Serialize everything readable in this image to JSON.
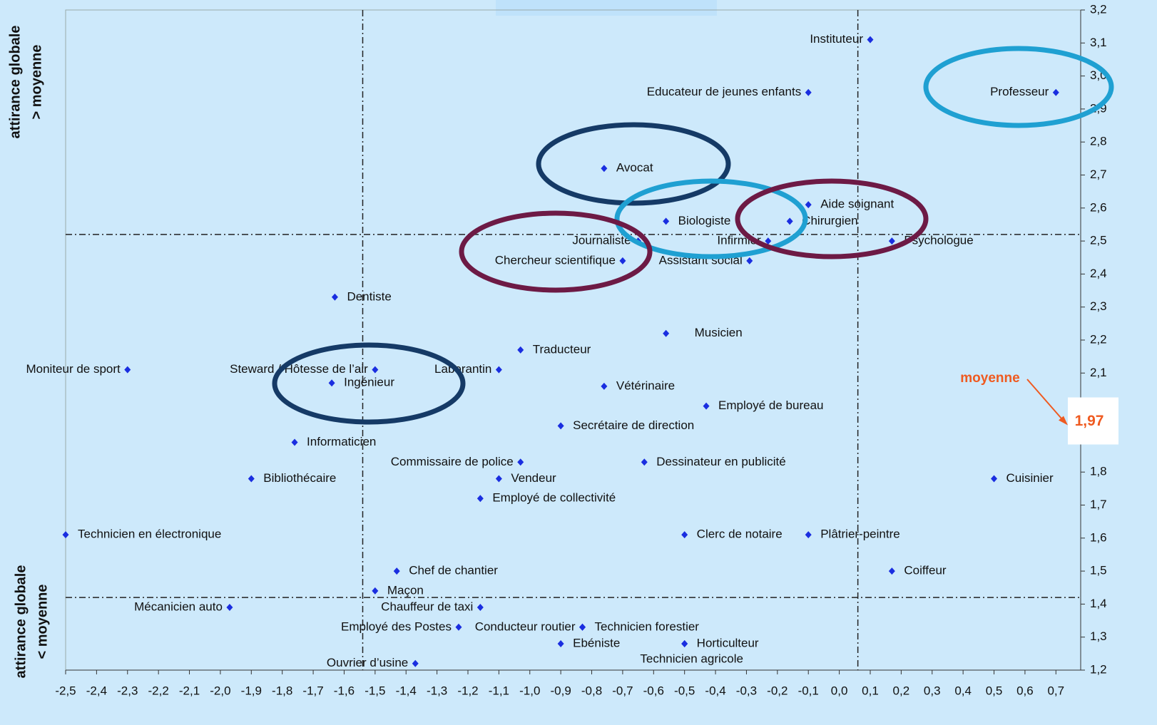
{
  "chart_data": {
    "type": "scatter",
    "y_label_top": [
      "attirance globale",
      "> moyenne"
    ],
    "y_label_bottom": [
      "attirance globale",
      "< moyenne"
    ],
    "mean_title": "moyenne",
    "mean": {
      "value": 1.97,
      "label": "1,97"
    },
    "reference_lines": {
      "x": [
        -1.54,
        0.06
      ],
      "y": [
        2.52,
        1.42
      ]
    },
    "color": "#1a2ee0",
    "xlim": [
      -2.5,
      0.78
    ],
    "ylim": [
      1.2,
      3.2
    ],
    "xticks": [
      {
        "value": -2.5,
        "label": "-2,5"
      },
      {
        "value": -2.4,
        "label": "-2,4"
      },
      {
        "value": -2.3,
        "label": "-2,3"
      },
      {
        "value": -2.2,
        "label": "-2,2"
      },
      {
        "value": -2.1,
        "label": "-2,1"
      },
      {
        "value": -2.0,
        "label": "-2,0"
      },
      {
        "value": -1.9,
        "label": "-1,9"
      },
      {
        "value": -1.8,
        "label": "-1,8"
      },
      {
        "value": -1.7,
        "label": "-1,7"
      },
      {
        "value": -1.6,
        "label": "-1,6"
      },
      {
        "value": -1.5,
        "label": "-1,5"
      },
      {
        "value": -1.4,
        "label": "-1,4"
      },
      {
        "value": -1.3,
        "label": "-1,3"
      },
      {
        "value": -1.2,
        "label": "-1,2"
      },
      {
        "value": -1.1,
        "label": "-1,1"
      },
      {
        "value": -1.0,
        "label": "-1,0"
      },
      {
        "value": -0.9,
        "label": "-0,9"
      },
      {
        "value": -0.8,
        "label": "-0,8"
      },
      {
        "value": -0.7,
        "label": "-0,7"
      },
      {
        "value": -0.6,
        "label": "-0,6"
      },
      {
        "value": -0.5,
        "label": "-0,5"
      },
      {
        "value": -0.4,
        "label": "-0,4"
      },
      {
        "value": -0.3,
        "label": "-0,3"
      },
      {
        "value": -0.2,
        "label": "-0,2"
      },
      {
        "value": -0.1,
        "label": "-0,1"
      },
      {
        "value": 0.0,
        "label": "0,0"
      },
      {
        "value": 0.1,
        "label": "0,1"
      },
      {
        "value": 0.2,
        "label": "0,2"
      },
      {
        "value": 0.3,
        "label": "0,3"
      },
      {
        "value": 0.4,
        "label": "0,4"
      },
      {
        "value": 0.5,
        "label": "0,5"
      },
      {
        "value": 0.6,
        "label": "0,6"
      },
      {
        "value": 0.7,
        "label": "0,7"
      }
    ],
    "yticks": [
      {
        "value": 1.2,
        "label": "1,2"
      },
      {
        "value": 1.3,
        "label": "1,3"
      },
      {
        "value": 1.4,
        "label": "1,4"
      },
      {
        "value": 1.5,
        "label": "1,5"
      },
      {
        "value": 1.6,
        "label": "1,6"
      },
      {
        "value": 1.7,
        "label": "1,7"
      },
      {
        "value": 1.8,
        "label": "1,8"
      },
      {
        "value": 1.9,
        "label": "1,9"
      },
      {
        "value": 2.0,
        "label": "2,0"
      },
      {
        "value": 2.1,
        "label": "2,1"
      },
      {
        "value": 2.2,
        "label": "2,2"
      },
      {
        "value": 2.3,
        "label": "2,3"
      },
      {
        "value": 2.4,
        "label": "2,4"
      },
      {
        "value": 2.5,
        "label": "2,5"
      },
      {
        "value": 2.6,
        "label": "2,6"
      },
      {
        "value": 2.7,
        "label": "2,7"
      },
      {
        "value": 2.8,
        "label": "2,8"
      },
      {
        "value": 2.9,
        "label": "2,9"
      },
      {
        "value": 3.0,
        "label": "3,0"
      },
      {
        "value": 3.1,
        "label": "3,1"
      },
      {
        "value": 3.2,
        "label": "3,2"
      }
    ],
    "points": [
      {
        "label": "Instituteur",
        "x": 0.1,
        "y": 3.11
      },
      {
        "label": "Professeur",
        "x": 0.7,
        "y": 2.95
      },
      {
        "label": "Educateur de jeunes enfants",
        "x": -0.1,
        "y": 2.95
      },
      {
        "label": "Avocat",
        "x": -0.76,
        "y": 2.72
      },
      {
        "label": "Aide soignant",
        "x": -0.1,
        "y": 2.61
      },
      {
        "label": "Biologiste",
        "x": -0.56,
        "y": 2.56
      },
      {
        "label": "Chirurgien",
        "x": -0.16,
        "y": 2.56
      },
      {
        "label": "Journaliste",
        "x": -0.65,
        "y": 2.5
      },
      {
        "label": "Infirmier",
        "x": -0.23,
        "y": 2.5
      },
      {
        "label": "Psychologue",
        "x": 0.17,
        "y": 2.5
      },
      {
        "label": "Chercheur scientifique",
        "x": -0.7,
        "y": 2.44
      },
      {
        "label": "Assistant social",
        "x": -0.29,
        "y": 2.44
      },
      {
        "label": "Dentiste",
        "x": -1.63,
        "y": 2.33
      },
      {
        "label": "Musicien",
        "x": -0.56,
        "y": 2.22
      },
      {
        "label": "Traducteur",
        "x": -1.03,
        "y": 2.17
      },
      {
        "label": "Moniteur de sport",
        "x": -2.3,
        "y": 2.11
      },
      {
        "label": "Steward / Hôtesse de l’air",
        "x": -1.5,
        "y": 2.11
      },
      {
        "label": "Laborantin",
        "x": -1.1,
        "y": 2.11
      },
      {
        "label": "Ingénieur",
        "x": -1.64,
        "y": 2.07
      },
      {
        "label": "Vétérinaire",
        "x": -0.76,
        "y": 2.06
      },
      {
        "label": "Employé de bureau",
        "x": -0.43,
        "y": 2.0
      },
      {
        "label": "Secrétaire de direction",
        "x": -0.9,
        "y": 1.94
      },
      {
        "label": "Informaticien",
        "x": -1.76,
        "y": 1.89
      },
      {
        "label": "Commissaire de police",
        "x": -1.03,
        "y": 1.83
      },
      {
        "label": "Dessinateur en publicité",
        "x": -0.63,
        "y": 1.83
      },
      {
        "label": "Bibliothécaire",
        "x": -1.9,
        "y": 1.78
      },
      {
        "label": "Vendeur",
        "x": -1.1,
        "y": 1.78
      },
      {
        "label": "Cuisinier",
        "x": 0.5,
        "y": 1.78
      },
      {
        "label": "Employé de collectivité",
        "x": -1.16,
        "y": 1.72
      },
      {
        "label": "Technicien en électronique",
        "x": -2.5,
        "y": 1.61
      },
      {
        "label": "Clerc de notaire",
        "x": -0.5,
        "y": 1.61
      },
      {
        "label": "Plâtrier-peintre",
        "x": -0.1,
        "y": 1.61
      },
      {
        "label": "Chef de chantier",
        "x": -1.43,
        "y": 1.5
      },
      {
        "label": "Coiffeur",
        "x": 0.17,
        "y": 1.5
      },
      {
        "label": "Maçon",
        "x": -1.5,
        "y": 1.44
      },
      {
        "label": "Mécanicien auto",
        "x": -1.97,
        "y": 1.39
      },
      {
        "label": "Chauffeur de taxi",
        "x": -1.16,
        "y": 1.39
      },
      {
        "label": "Employé des Postes",
        "x": -1.23,
        "y": 1.33
      },
      {
        "label": "Conducteur routier",
        "x": -0.83,
        "y": 1.33
      },
      {
        "label": "Technicien forestier",
        "x": -0.83,
        "y": 1.33
      },
      {
        "label": "Ebéniste",
        "x": -0.9,
        "y": 1.28
      },
      {
        "label": "Horticulteur",
        "x": -0.5,
        "y": 1.28
      },
      {
        "label": "Technicien agricole",
        "x": -0.5,
        "y": 1.28
      },
      {
        "label": "Ouvrier d’usine",
        "x": -1.37,
        "y": 1.22
      }
    ]
  }
}
